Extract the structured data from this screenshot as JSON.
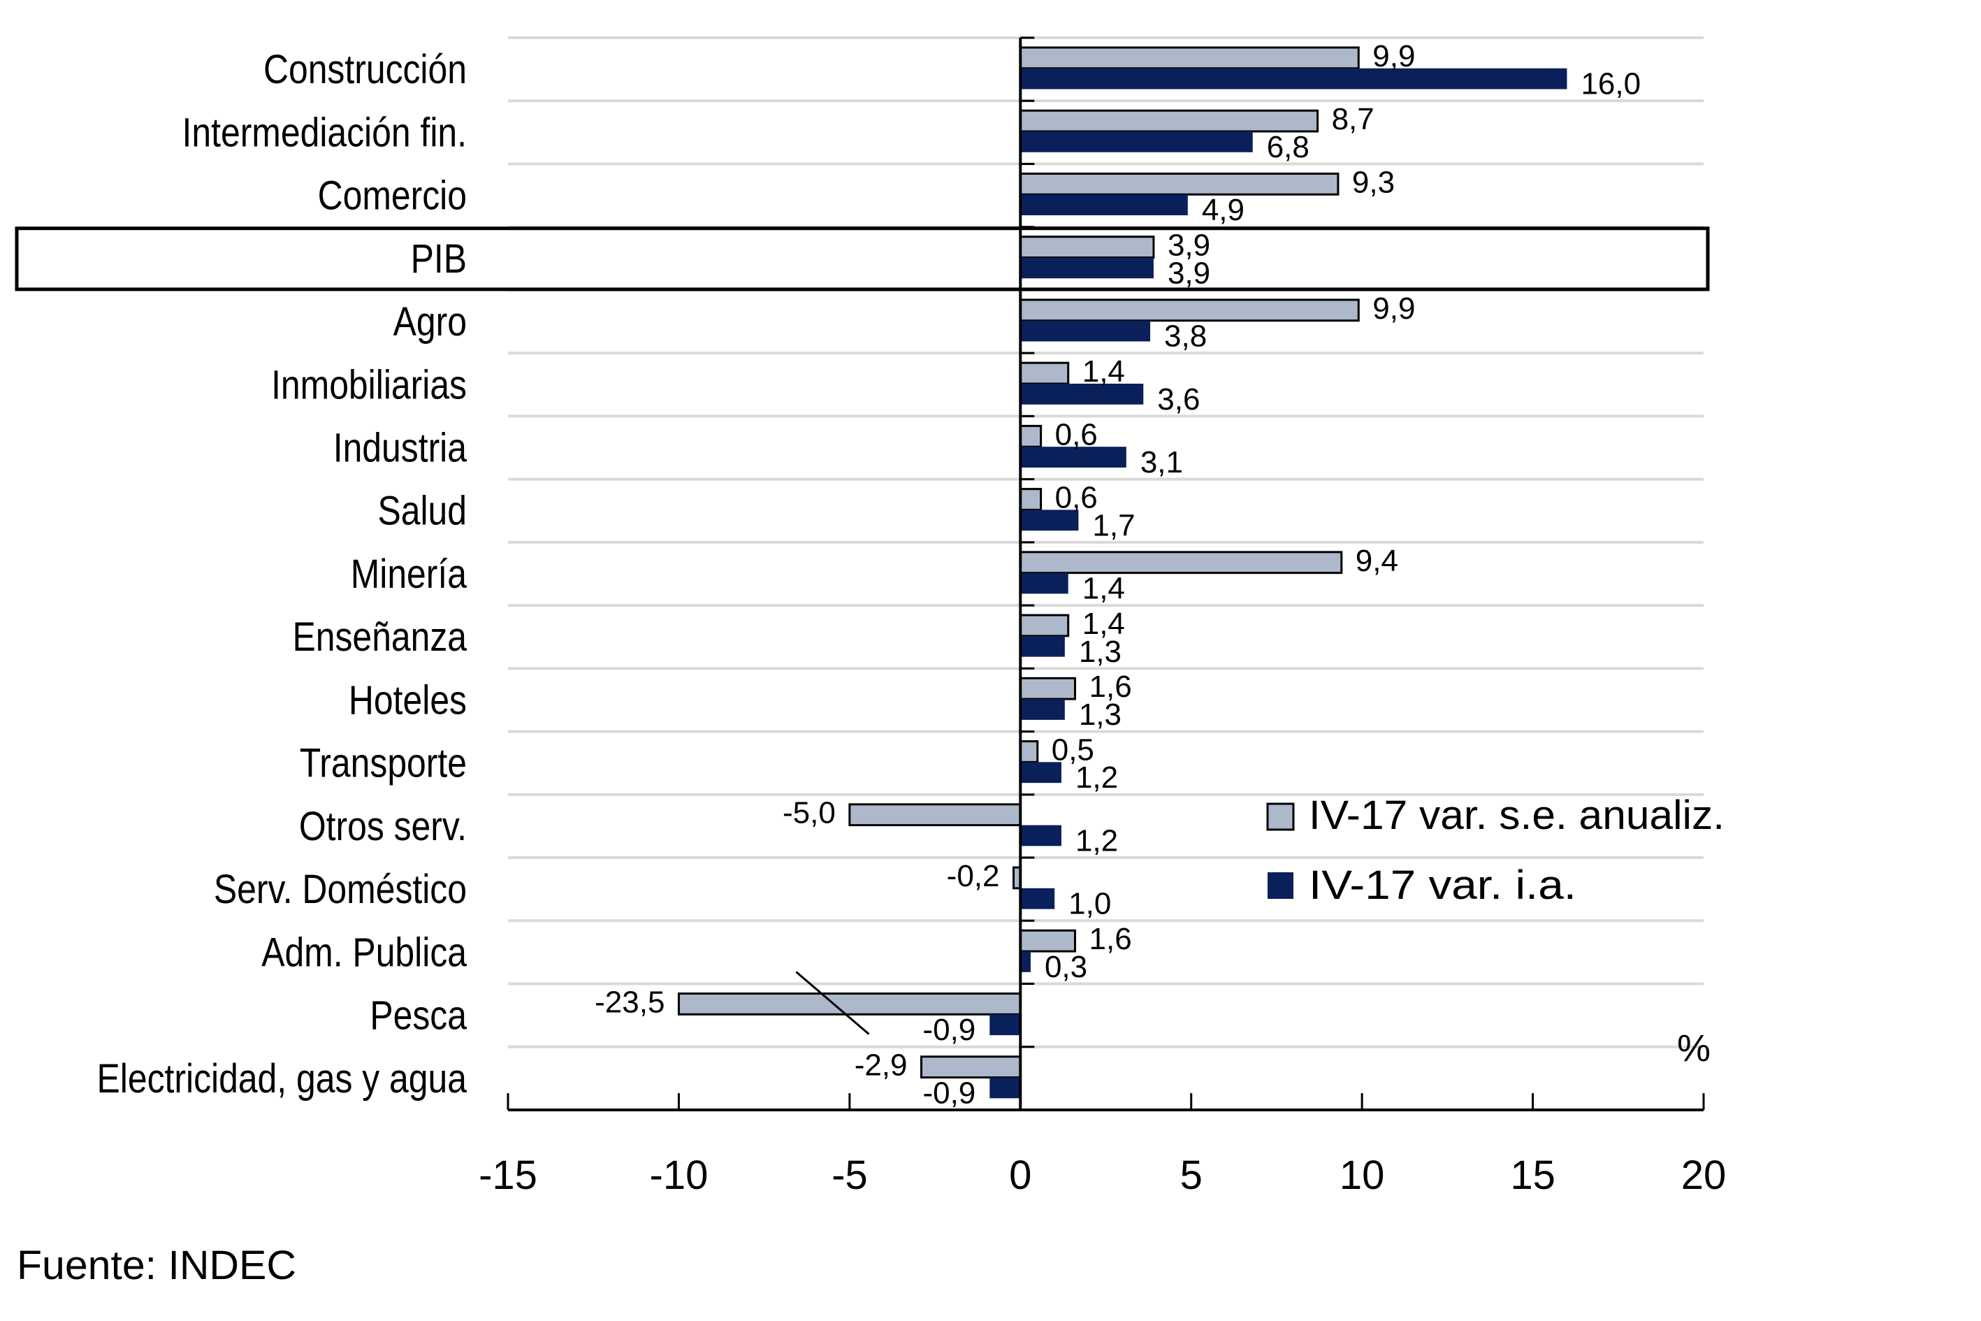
{
  "chart_data": {
    "type": "bar",
    "orientation": "horizontal",
    "title": "",
    "xlabel": "",
    "ylabel": "",
    "unit_label": "%",
    "xlim": [
      -15,
      20
    ],
    "xticks": [
      -15,
      -10,
      -5,
      0,
      5,
      10,
      15,
      20
    ],
    "xtick_labels": [
      "-15",
      "-10",
      "-5",
      "0",
      "5",
      "10",
      "15",
      "20"
    ],
    "grid": true,
    "legend_position": "right-center",
    "highlighted_category": "PIB",
    "truncated_bars": [
      {
        "category": "Pesca",
        "series": "IV-17 var. s.e. anualiz.",
        "shown_to": -10
      }
    ],
    "categories": [
      "Construcción",
      "Intermediación fin.",
      "Comercio",
      "PIB",
      "Agro",
      "Inmobiliarias",
      "Industria",
      "Salud",
      "Minería",
      "Enseñanza",
      "Hoteles",
      "Transporte",
      "Otros serv.",
      "Serv. Doméstico",
      "Adm. Publica",
      "Pesca",
      "Electricidad, gas y agua"
    ],
    "series": [
      {
        "name": "IV-17 var. s.e. anualiz.",
        "color": "#adb9ca",
        "values": [
          9.9,
          8.7,
          9.3,
          3.9,
          9.9,
          1.4,
          0.6,
          0.6,
          9.4,
          1.4,
          1.6,
          0.5,
          -5.0,
          -0.2,
          1.6,
          -23.5,
          -2.9
        ],
        "labels": [
          "9,9",
          "8,7",
          "9,3",
          "3,9",
          "9,9",
          "1,4",
          "0,6",
          "0,6",
          "9,4",
          "1,4",
          "1,6",
          "0,5",
          "-5,0",
          "-0,2",
          "1,6",
          "-23,5",
          "-2,9"
        ]
      },
      {
        "name": "IV-17 var. i.a.",
        "color": "#0a205a",
        "values": [
          16.0,
          6.8,
          4.9,
          3.9,
          3.8,
          3.6,
          3.1,
          1.7,
          1.4,
          1.3,
          1.3,
          1.2,
          1.2,
          1.0,
          0.3,
          -0.9,
          -0.9
        ],
        "labels": [
          "16,0",
          "6,8",
          "4,9",
          "3,9",
          "3,8",
          "3,6",
          "3,1",
          "1,7",
          "1,4",
          "1,3",
          "1,3",
          "1,2",
          "1,2",
          "1,0",
          "0,3",
          "-0,9",
          "-0,9"
        ]
      }
    ],
    "source": "Fuente:  INDEC"
  }
}
